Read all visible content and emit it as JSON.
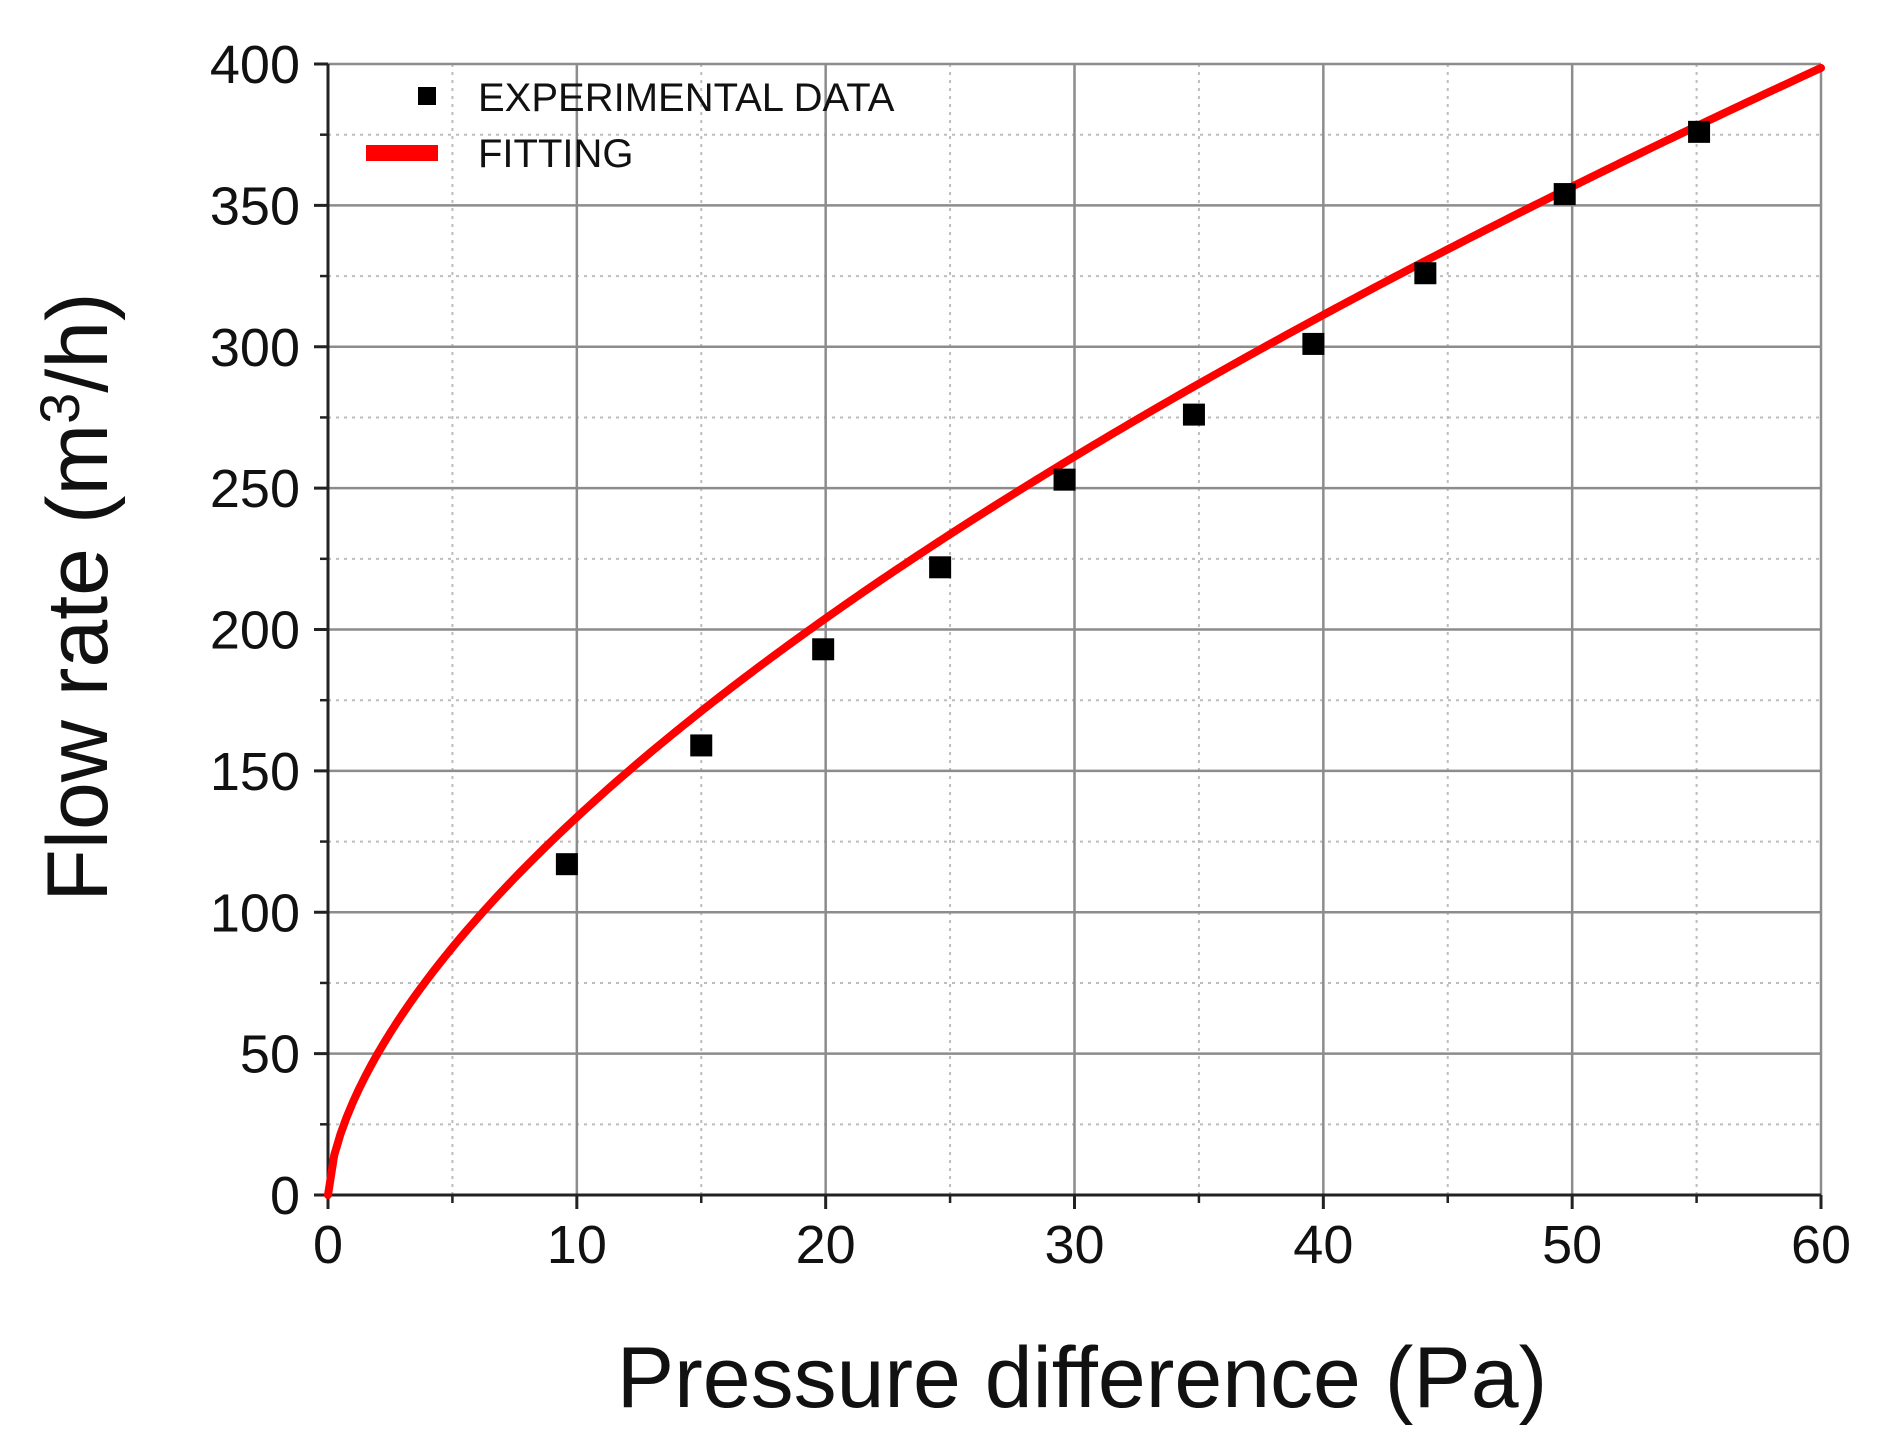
{
  "chart_data": {
    "type": "scatter",
    "title": "",
    "xlabel": "Pressure difference (Pa)",
    "ylabel_main": "Flow rate (m",
    "ylabel_sup": "3",
    "ylabel_tail": "/h)",
    "xlim": [
      0,
      60
    ],
    "ylim": [
      0,
      400
    ],
    "x_ticks": [
      0,
      10,
      20,
      30,
      40,
      50,
      60
    ],
    "y_ticks": [
      0,
      50,
      100,
      150,
      200,
      250,
      300,
      350,
      400
    ],
    "x_tick_labels": [
      "0",
      "10",
      "20",
      "30",
      "40",
      "50",
      "60"
    ],
    "y_tick_labels": [
      "0",
      "50",
      "100",
      "150",
      "200",
      "250",
      "300",
      "350",
      "400"
    ],
    "x_minor_step": 5,
    "y_minor_step": 25,
    "grid": true,
    "legend_position": "top-left",
    "series": [
      {
        "name": "EXPERIMENTAL DATA",
        "kind": "markers",
        "marker": "square",
        "color": "#000000",
        "x": [
          9.6,
          15.0,
          19.9,
          24.6,
          29.6,
          34.8,
          39.6,
          44.1,
          49.7,
          55.1
        ],
        "y": [
          117,
          159,
          193,
          222,
          253,
          276,
          301,
          326,
          354,
          376
        ]
      },
      {
        "name": "FITTING",
        "kind": "line",
        "color": "#ff0000",
        "model": "y = a * x^b",
        "a": 32.8,
        "b": 0.61,
        "x_range": [
          0,
          60
        ]
      }
    ]
  }
}
